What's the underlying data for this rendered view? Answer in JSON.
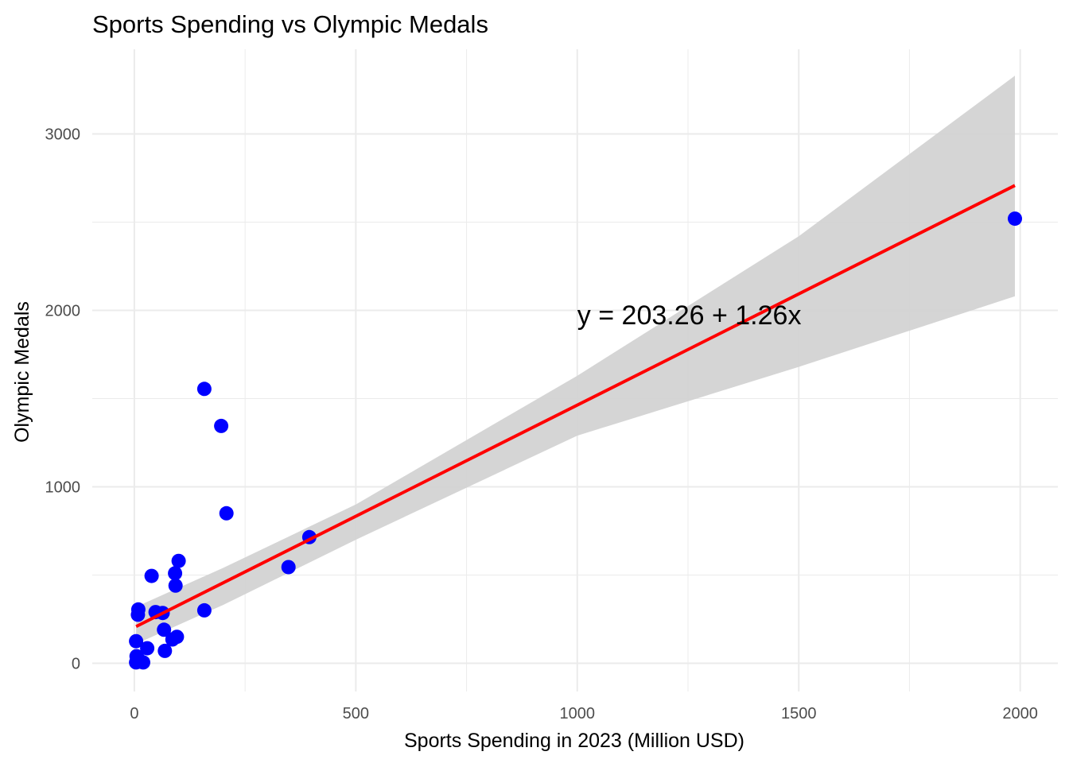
{
  "chart_data": {
    "type": "scatter",
    "title": "Sports Spending vs Olympic Medals",
    "xlabel": "Sports Spending in 2023 (Million USD)",
    "ylabel": "Olympic Medals",
    "xlim": [
      -95,
      2085
    ],
    "ylim": [
      -160,
      3480
    ],
    "x_ticks": [
      0,
      500,
      1000,
      1500,
      2000
    ],
    "x_tick_labels": [
      "0",
      "500",
      "1000",
      "1500",
      "2000"
    ],
    "x_minor_ticks": [
      250,
      750,
      1250,
      1750
    ],
    "y_ticks": [
      0,
      1000,
      2000,
      3000
    ],
    "y_tick_labels": [
      "0",
      "1000",
      "2000",
      "3000"
    ],
    "y_minor_ticks": [
      500,
      1500,
      2500
    ],
    "grid": true,
    "colors": {
      "points": "#0000ff",
      "fit_line": "#ff0000",
      "confidence_band": "#d3d3d3",
      "grid": "#ebebeb",
      "tick_text": "#4d4d4d"
    },
    "points": [
      {
        "x": 1988,
        "y": 2520
      },
      {
        "x": 395,
        "y": 715
      },
      {
        "x": 348,
        "y": 545
      },
      {
        "x": 208,
        "y": 850
      },
      {
        "x": 196,
        "y": 1345
      },
      {
        "x": 158,
        "y": 1555
      },
      {
        "x": 158,
        "y": 300
      },
      {
        "x": 100,
        "y": 580
      },
      {
        "x": 92,
        "y": 510
      },
      {
        "x": 93,
        "y": 440
      },
      {
        "x": 96,
        "y": 150
      },
      {
        "x": 86,
        "y": 135
      },
      {
        "x": 67,
        "y": 190
      },
      {
        "x": 64,
        "y": 285
      },
      {
        "x": 48,
        "y": 290
      },
      {
        "x": 39,
        "y": 495
      },
      {
        "x": 69,
        "y": 70
      },
      {
        "x": 9,
        "y": 305
      },
      {
        "x": 8,
        "y": 275
      },
      {
        "x": 4,
        "y": 125
      },
      {
        "x": 29,
        "y": 85
      },
      {
        "x": 5,
        "y": 40
      },
      {
        "x": 10,
        "y": 20
      },
      {
        "x": 12,
        "y": 10
      },
      {
        "x": 20,
        "y": 5
      },
      {
        "x": 4,
        "y": 5
      }
    ],
    "fit": {
      "intercept": 203.26,
      "slope": 1.26,
      "x_range": [
        4,
        1988
      ],
      "band": [
        {
          "x": 4,
          "lower": 110,
          "upper": 320
        },
        {
          "x": 200,
          "lower": 330,
          "upper": 540
        },
        {
          "x": 500,
          "lower": 700,
          "upper": 900
        },
        {
          "x": 1000,
          "lower": 1290,
          "upper": 1630
        },
        {
          "x": 1500,
          "lower": 1680,
          "upper": 2420
        },
        {
          "x": 1988,
          "lower": 2080,
          "upper": 3330
        }
      ]
    },
    "annotation": {
      "text": "y = 203.26 + 1.26x",
      "x": 1000,
      "y": 1975
    }
  }
}
